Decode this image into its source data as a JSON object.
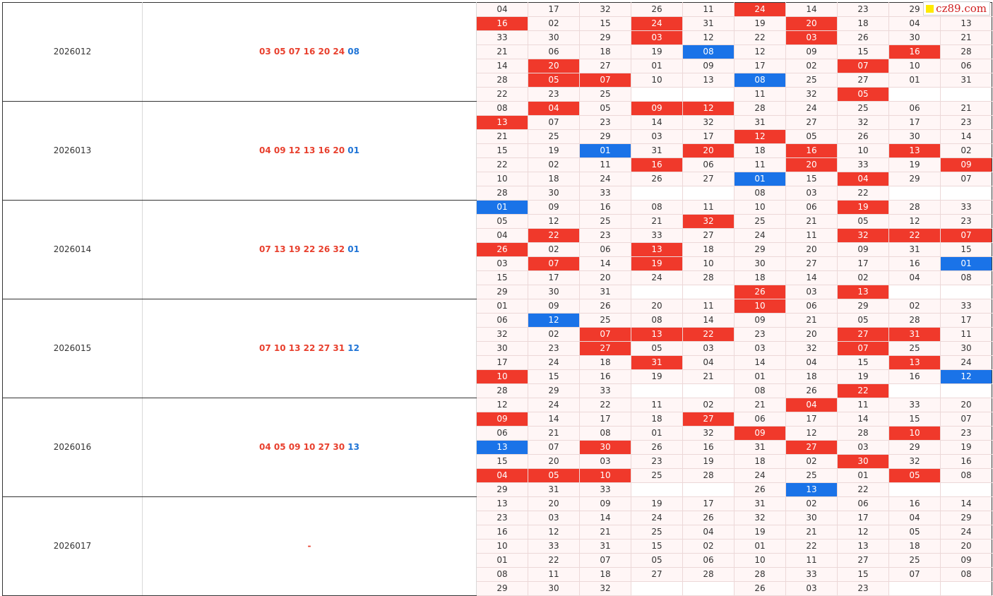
{
  "watermark": {
    "text": "cz89.com",
    "color": "#d02020",
    "square_color": "#ffea00"
  },
  "colors": {
    "hit_red": "#f0392b",
    "hit_blue": "#1a73e8",
    "cell_bg": "#fff6f6"
  },
  "rows": [
    {
      "period": "2026012",
      "red": "03 05 07 16 20 24",
      "blue": "08",
      "left": [
        [
          "04",
          "17",
          "32",
          "26",
          "11"
        ],
        [
          "16",
          "02",
          "15",
          "24",
          "31"
        ],
        [
          "33",
          "30",
          "29",
          "03",
          "12"
        ],
        [
          "21",
          "06",
          "18",
          "19",
          "08"
        ],
        [
          "14",
          "20",
          "27",
          "01",
          "09"
        ],
        [
          "28",
          "05",
          "07",
          "10",
          "13"
        ],
        [
          "22",
          "23",
          "25",
          "",
          ""
        ]
      ],
      "right": [
        [
          "24",
          "14",
          "23",
          "29",
          "25"
        ],
        [
          "19",
          "20",
          "18",
          "04",
          "13"
        ],
        [
          "22",
          "03",
          "26",
          "30",
          "21"
        ],
        [
          "12",
          "09",
          "15",
          "16",
          "28"
        ],
        [
          "17",
          "02",
          "07",
          "10",
          "06"
        ],
        [
          "08",
          "25",
          "27",
          "01",
          "31"
        ],
        [
          "11",
          "32",
          "05",
          "",
          ""
        ]
      ]
    },
    {
      "period": "2026013",
      "red": "04 09 12 13 16 20",
      "blue": "01",
      "left": [
        [
          "08",
          "04",
          "05",
          "09",
          "12"
        ],
        [
          "13",
          "07",
          "23",
          "14",
          "32"
        ],
        [
          "21",
          "25",
          "29",
          "03",
          "17"
        ],
        [
          "15",
          "19",
          "01",
          "31",
          "20"
        ],
        [
          "22",
          "02",
          "11",
          "16",
          "06"
        ],
        [
          "10",
          "18",
          "24",
          "26",
          "27"
        ],
        [
          "28",
          "30",
          "33",
          "",
          ""
        ]
      ],
      "right": [
        [
          "28",
          "24",
          "25",
          "06",
          "21"
        ],
        [
          "31",
          "27",
          "32",
          "17",
          "23"
        ],
        [
          "12",
          "05",
          "26",
          "30",
          "14"
        ],
        [
          "18",
          "16",
          "10",
          "13",
          "02"
        ],
        [
          "11",
          "20",
          "33",
          "19",
          "09"
        ],
        [
          "01",
          "15",
          "04",
          "29",
          "07"
        ],
        [
          "08",
          "03",
          "22",
          "",
          ""
        ]
      ]
    },
    {
      "period": "2026014",
      "red": "07 13 19 22 26 32",
      "blue": "01",
      "left": [
        [
          "01",
          "09",
          "16",
          "08",
          "11"
        ],
        [
          "05",
          "12",
          "25",
          "21",
          "32"
        ],
        [
          "04",
          "22",
          "23",
          "33",
          "27"
        ],
        [
          "26",
          "02",
          "06",
          "13",
          "18"
        ],
        [
          "03",
          "07",
          "14",
          "19",
          "10"
        ],
        [
          "15",
          "17",
          "20",
          "24",
          "28"
        ],
        [
          "29",
          "30",
          "31",
          "",
          ""
        ]
      ],
      "right": [
        [
          "10",
          "06",
          "19",
          "28",
          "33"
        ],
        [
          "25",
          "21",
          "05",
          "12",
          "23"
        ],
        [
          "24",
          "11",
          "32",
          "22",
          "07"
        ],
        [
          "29",
          "20",
          "09",
          "31",
          "15"
        ],
        [
          "30",
          "27",
          "17",
          "16",
          "01"
        ],
        [
          "18",
          "14",
          "02",
          "04",
          "08"
        ],
        [
          "26",
          "03",
          "13",
          "",
          ""
        ]
      ]
    },
    {
      "period": "2026015",
      "red": "07 10 13 22 27 31",
      "blue": "12",
      "left": [
        [
          "01",
          "09",
          "26",
          "20",
          "11"
        ],
        [
          "06",
          "12",
          "25",
          "08",
          "14"
        ],
        [
          "32",
          "02",
          "07",
          "13",
          "22"
        ],
        [
          "30",
          "23",
          "27",
          "05",
          "03"
        ],
        [
          "17",
          "24",
          "18",
          "31",
          "04"
        ],
        [
          "10",
          "15",
          "16",
          "19",
          "21"
        ],
        [
          "28",
          "29",
          "33",
          "",
          ""
        ]
      ],
      "right": [
        [
          "10",
          "06",
          "29",
          "02",
          "33"
        ],
        [
          "09",
          "21",
          "05",
          "28",
          "17"
        ],
        [
          "23",
          "20",
          "27",
          "31",
          "11"
        ],
        [
          "03",
          "32",
          "07",
          "25",
          "30"
        ],
        [
          "14",
          "04",
          "15",
          "13",
          "24"
        ],
        [
          "01",
          "18",
          "19",
          "16",
          "12"
        ],
        [
          "08",
          "26",
          "22",
          "",
          ""
        ]
      ]
    },
    {
      "period": "2026016",
      "red": "04 05 09 10 27 30",
      "blue": "13",
      "left": [
        [
          "12",
          "24",
          "22",
          "11",
          "02"
        ],
        [
          "09",
          "14",
          "17",
          "18",
          "27"
        ],
        [
          "06",
          "21",
          "08",
          "01",
          "32"
        ],
        [
          "13",
          "07",
          "30",
          "26",
          "16"
        ],
        [
          "15",
          "20",
          "03",
          "23",
          "19"
        ],
        [
          "04",
          "05",
          "10",
          "25",
          "28"
        ],
        [
          "29",
          "31",
          "33",
          "",
          ""
        ]
      ],
      "right": [
        [
          "21",
          "04",
          "11",
          "33",
          "20"
        ],
        [
          "06",
          "17",
          "14",
          "15",
          "07"
        ],
        [
          "09",
          "12",
          "28",
          "10",
          "23"
        ],
        [
          "31",
          "27",
          "03",
          "29",
          "19"
        ],
        [
          "18",
          "02",
          "30",
          "32",
          "16"
        ],
        [
          "24",
          "25",
          "01",
          "05",
          "08"
        ],
        [
          "26",
          "13",
          "22",
          "",
          ""
        ]
      ]
    },
    {
      "period": "2026017",
      "red": "-",
      "blue": "",
      "left": [
        [
          "13",
          "20",
          "09",
          "19",
          "17"
        ],
        [
          "23",
          "03",
          "14",
          "24",
          "26"
        ],
        [
          "16",
          "12",
          "21",
          "25",
          "04"
        ],
        [
          "10",
          "33",
          "31",
          "15",
          "02"
        ],
        [
          "01",
          "22",
          "07",
          "05",
          "06"
        ],
        [
          "08",
          "11",
          "18",
          "27",
          "28"
        ],
        [
          "29",
          "30",
          "32",
          "",
          ""
        ]
      ],
      "right": [
        [
          "31",
          "02",
          "06",
          "16",
          "14"
        ],
        [
          "32",
          "30",
          "17",
          "04",
          "29"
        ],
        [
          "19",
          "21",
          "12",
          "05",
          "24"
        ],
        [
          "01",
          "22",
          "13",
          "18",
          "20"
        ],
        [
          "10",
          "11",
          "27",
          "25",
          "09"
        ],
        [
          "28",
          "33",
          "15",
          "07",
          "08"
        ],
        [
          "26",
          "03",
          "23",
          "",
          ""
        ]
      ]
    }
  ]
}
